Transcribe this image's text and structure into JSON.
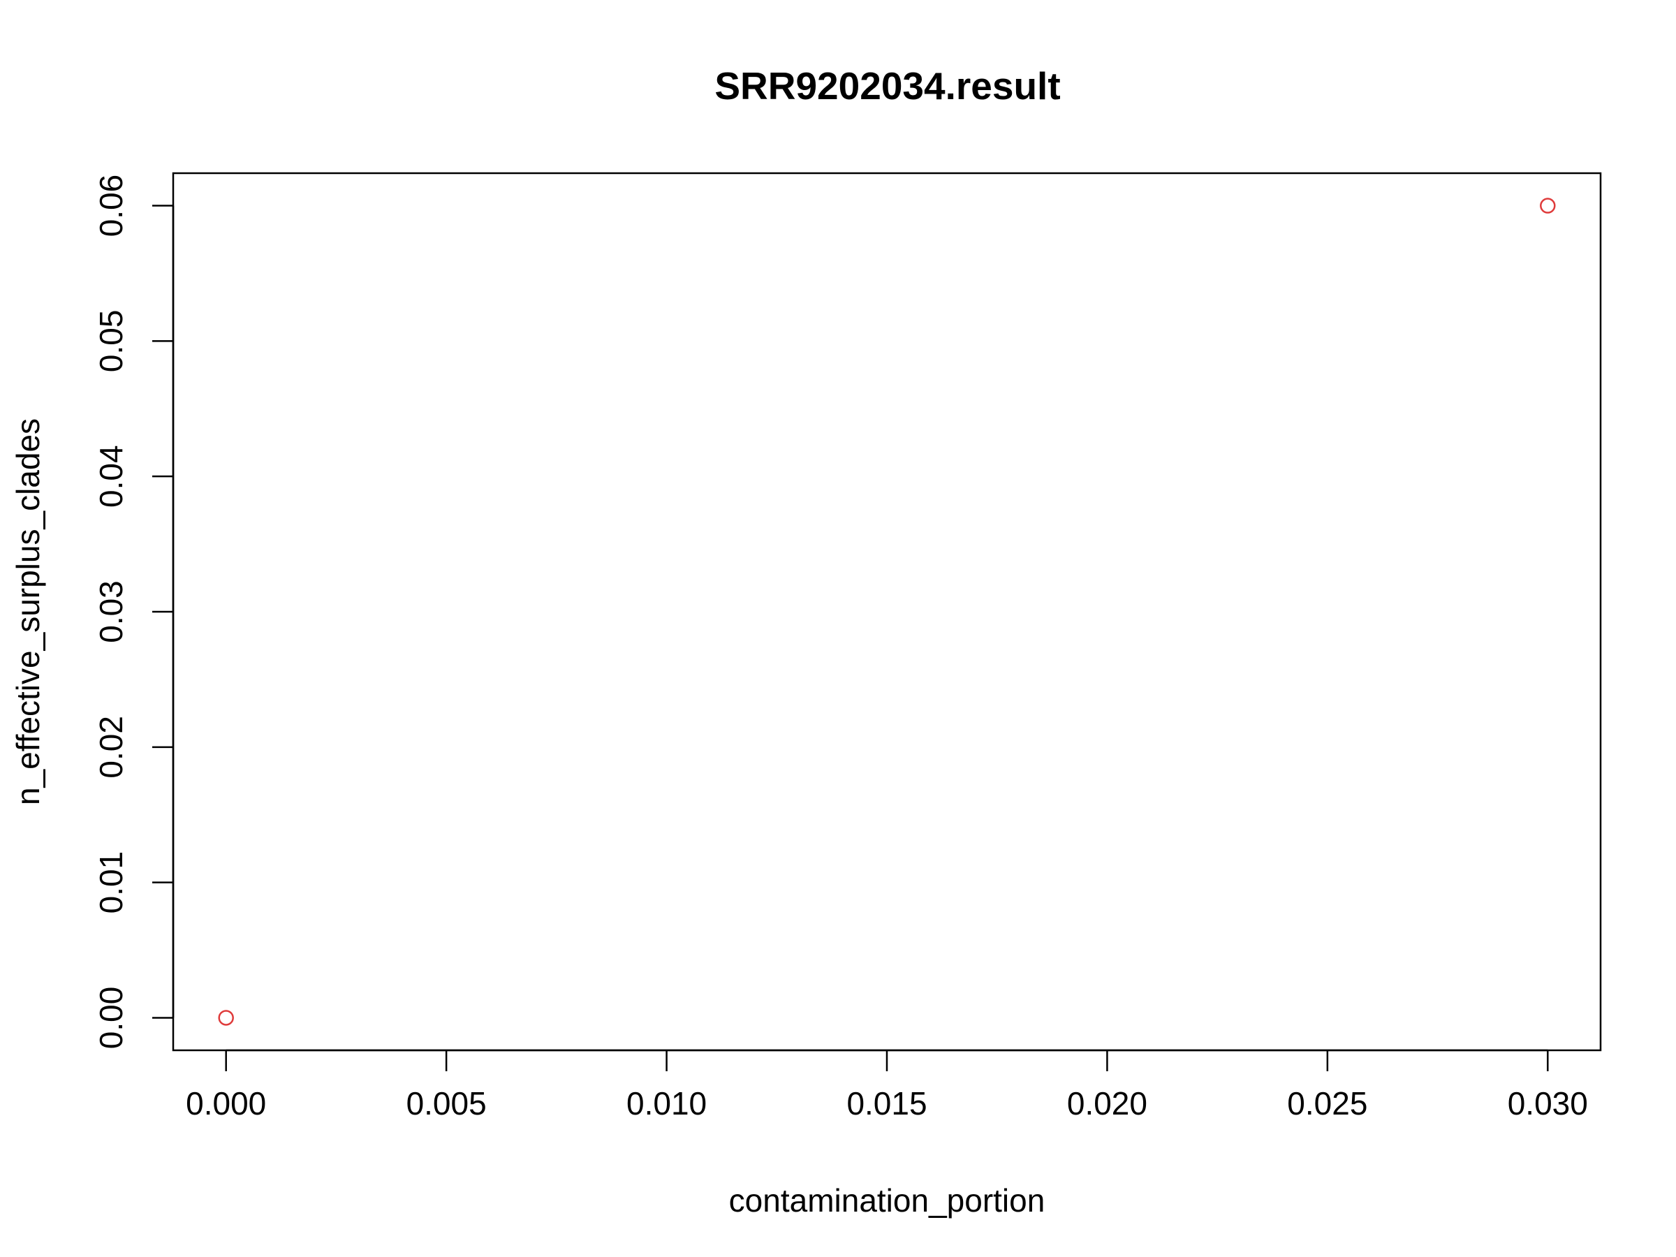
{
  "chart_data": {
    "type": "scatter",
    "title": "SRR9202034.result",
    "xlabel": "contamination_portion",
    "ylabel": "n_effective_surplus_clades",
    "xlim": [
      -0.0012,
      0.0312
    ],
    "ylim": [
      -0.0024,
      0.0624
    ],
    "x_ticks": [
      0.0,
      0.005,
      0.01,
      0.015,
      0.02,
      0.025,
      0.03
    ],
    "x_tick_labels": [
      "0.000",
      "0.005",
      "0.010",
      "0.015",
      "0.020",
      "0.025",
      "0.030"
    ],
    "y_ticks": [
      0.0,
      0.01,
      0.02,
      0.03,
      0.04,
      0.05,
      0.06
    ],
    "y_tick_labels": [
      "0.00",
      "0.01",
      "0.02",
      "0.03",
      "0.04",
      "0.05",
      "0.06"
    ],
    "grid": false,
    "point_color": "#df3b3b",
    "series": [
      {
        "points": [
          {
            "x": 0.0,
            "y": 0.0
          },
          {
            "x": 0.03,
            "y": 0.06
          }
        ]
      }
    ]
  }
}
